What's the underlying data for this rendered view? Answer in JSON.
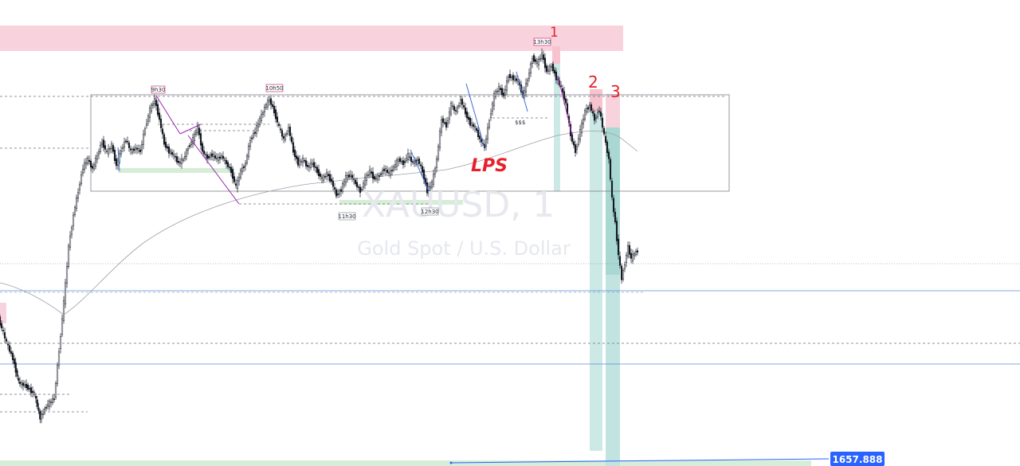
{
  "chart_data": {
    "type": "candlestick",
    "symbol_watermark": "XAUUSD, 1",
    "description_watermark": "Gold Spot / U.S. Dollar",
    "last_price_label": "1657.888",
    "time_markers": [
      "9h30",
      "10h50",
      "11h30",
      "12h30",
      "13h30"
    ],
    "annotations": [
      "LPS",
      "$$$",
      "1",
      "2",
      "3"
    ],
    "colors": {
      "supply_zone": "#f8c9d4",
      "demand_zone": "#c8e6c9",
      "target_column": "#b2dfdb",
      "price_tag": "#2962ff",
      "handwriting": "#e8202a",
      "blue_line": "#5b8bd6",
      "purple_line": "#9c27b0"
    }
  }
}
